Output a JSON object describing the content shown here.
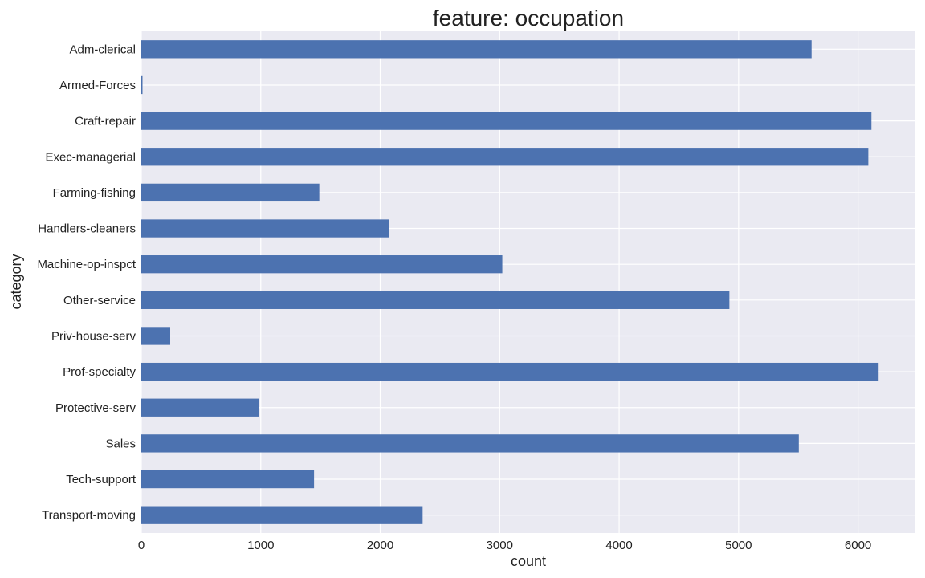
{
  "chart_data": {
    "type": "bar",
    "orientation": "horizontal",
    "title": "feature: occupation",
    "xlabel": "count",
    "ylabel": "category",
    "categories": [
      "Adm-clerical",
      "Armed-Forces",
      "Craft-repair",
      "Exec-managerial",
      "Farming-fishing",
      "Handlers-cleaners",
      "Machine-op-inspct",
      "Other-service",
      "Priv-house-serv",
      "Prof-specialty",
      "Protective-serv",
      "Sales",
      "Tech-support",
      "Transport-moving"
    ],
    "values": [
      5611,
      9,
      6112,
      6086,
      1490,
      2072,
      3022,
      4923,
      242,
      6172,
      983,
      5504,
      1446,
      2355
    ],
    "xticks": [
      0,
      1000,
      2000,
      3000,
      4000,
      5000,
      6000
    ],
    "xlim": [
      0,
      6480
    ],
    "grid": true,
    "legend": "none",
    "bar_color": "#4c72b0",
    "background_color": "#eaeaf2",
    "grid_color": "#ffffff"
  }
}
